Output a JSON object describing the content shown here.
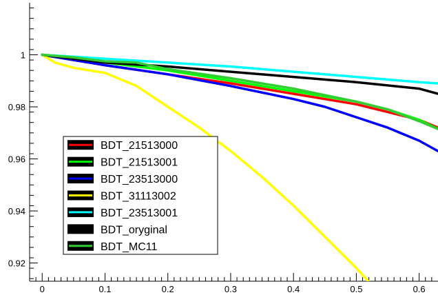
{
  "chart_data": {
    "type": "line",
    "title": "",
    "xlabel": "",
    "ylabel": "",
    "xlim": [
      -0.02,
      0.63
    ],
    "ylim": [
      0.913,
      1.02
    ],
    "x_ticks": [
      "0",
      "0.1",
      "0.2",
      "0.3",
      "0.4",
      "0.5",
      "0.6"
    ],
    "y_ticks": [
      "0.92",
      "0.94",
      "0.96",
      "0.98",
      "1"
    ],
    "legend_placement": "bottom-left",
    "grid": false,
    "series": [
      {
        "name": "BDT_21513000",
        "color": "#ff0000",
        "x": [
          0,
          0.05,
          0.1,
          0.2,
          0.3,
          0.4,
          0.5,
          0.55,
          0.6,
          0.63
        ],
        "y": [
          1.0,
          0.998,
          0.996,
          0.9925,
          0.989,
          0.985,
          0.981,
          0.978,
          0.975,
          0.972
        ]
      },
      {
        "name": "BDT_21513001",
        "color": "#00ff00",
        "x": [
          0,
          0.05,
          0.1,
          0.2,
          0.3,
          0.4,
          0.5,
          0.55,
          0.6,
          0.63
        ],
        "y": [
          1.0,
          0.998,
          0.997,
          0.994,
          0.99,
          0.986,
          0.982,
          0.979,
          0.975,
          0.9715
        ]
      },
      {
        "name": "BDT_23513000",
        "color": "#0000ff",
        "x": [
          0,
          0.05,
          0.1,
          0.2,
          0.3,
          0.4,
          0.45,
          0.5,
          0.55,
          0.6,
          0.63
        ],
        "y": [
          1.0,
          0.998,
          0.996,
          0.9925,
          0.988,
          0.983,
          0.98,
          0.976,
          0.972,
          0.967,
          0.963
        ]
      },
      {
        "name": "BDT_31113002",
        "color": "#ffff00",
        "x": [
          0,
          0.02,
          0.05,
          0.1,
          0.15,
          0.2,
          0.25,
          0.3,
          0.35,
          0.4,
          0.45,
          0.5,
          0.53
        ],
        "y": [
          1.0,
          0.997,
          0.995,
          0.993,
          0.988,
          0.98,
          0.972,
          0.963,
          0.953,
          0.942,
          0.93,
          0.918,
          0.91
        ]
      },
      {
        "name": "BDT_23513001",
        "color": "#00ffff",
        "x": [
          0,
          0.1,
          0.2,
          0.3,
          0.4,
          0.5,
          0.6,
          0.63
        ],
        "y": [
          1.0,
          0.9985,
          0.997,
          0.9955,
          0.9935,
          0.9915,
          0.9895,
          0.989
        ]
      },
      {
        "name": "BDT_oryginal",
        "color": "#000000",
        "x": [
          0,
          0.1,
          0.2,
          0.3,
          0.4,
          0.5,
          0.6,
          0.63
        ],
        "y": [
          1.0,
          0.997,
          0.9955,
          0.9935,
          0.9915,
          0.9895,
          0.987,
          0.985
        ]
      },
      {
        "name": "BDT_MC11",
        "color": "#33cc33",
        "x": [
          0,
          0.05,
          0.1,
          0.15,
          0.2,
          0.3,
          0.4,
          0.5,
          0.55,
          0.6,
          0.63
        ],
        "y": [
          1.0,
          0.999,
          0.9975,
          0.997,
          0.9945,
          0.991,
          0.987,
          0.982,
          0.979,
          0.9745,
          0.9715
        ]
      }
    ]
  }
}
